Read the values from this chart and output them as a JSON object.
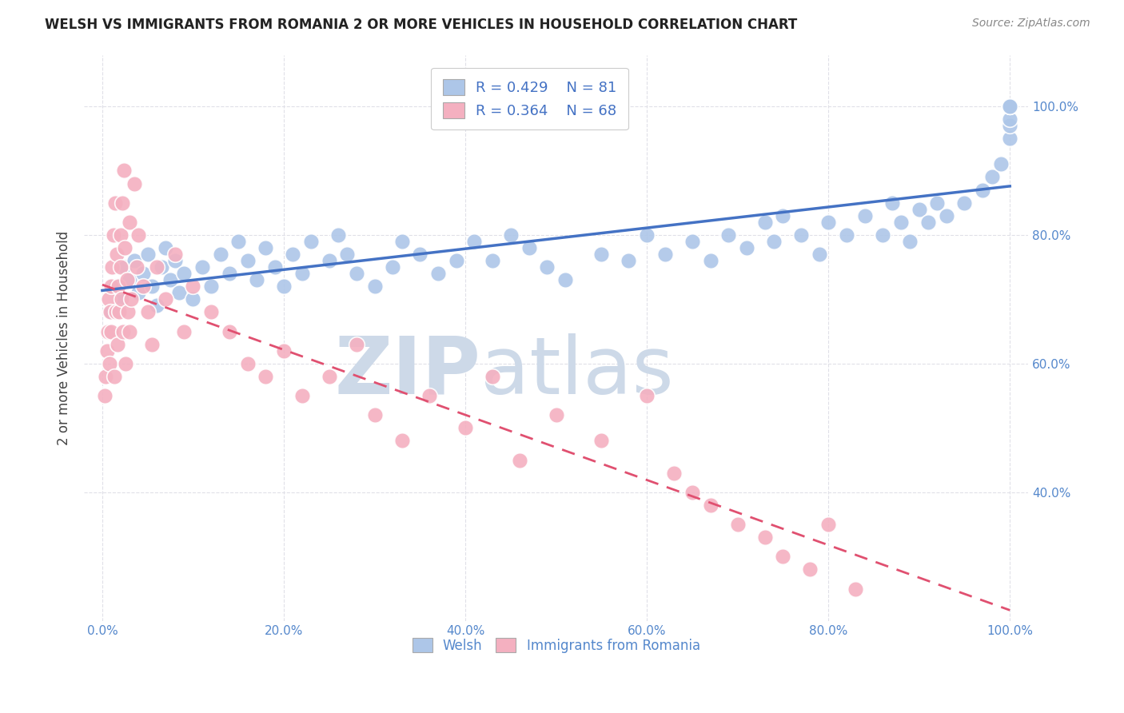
{
  "title": "WELSH VS IMMIGRANTS FROM ROMANIA 2 OR MORE VEHICLES IN HOUSEHOLD CORRELATION CHART",
  "source": "Source: ZipAtlas.com",
  "ylabel": "2 or more Vehicles in Household",
  "welsh_R": 0.429,
  "welsh_N": 81,
  "romania_R": 0.364,
  "romania_N": 68,
  "welsh_color": "#adc6e8",
  "welsh_line_color": "#4472c4",
  "romania_color": "#f4b0c0",
  "romania_line_color": "#e05070",
  "romania_dash_color": "#c0a0b0",
  "background_color": "#ffffff",
  "watermark_color": "#cdd9e8",
  "tick_label_color": "#5588cc",
  "grid_color": "#e0e0e8",
  "xlim": [
    -2,
    102
  ],
  "ylim": [
    20,
    108
  ],
  "x_ticks": [
    0,
    20,
    40,
    60,
    80,
    100
  ],
  "y_ticks": [
    40,
    60,
    80,
    100
  ],
  "welsh_x": [
    1.0,
    1.5,
    2.0,
    2.5,
    3.0,
    3.5,
    4.0,
    4.5,
    5.0,
    5.5,
    6.0,
    6.5,
    7.0,
    7.5,
    8.0,
    8.5,
    9.0,
    10.0,
    11.0,
    12.0,
    13.0,
    14.0,
    15.0,
    16.0,
    17.0,
    18.0,
    19.0,
    20.0,
    21.0,
    22.0,
    23.0,
    25.0,
    26.0,
    27.0,
    28.0,
    30.0,
    32.0,
    33.0,
    35.0,
    37.0,
    39.0,
    41.0,
    43.0,
    45.0,
    47.0,
    49.0,
    51.0,
    55.0,
    58.0,
    60.0,
    62.0,
    65.0,
    67.0,
    69.0,
    71.0,
    73.0,
    74.0,
    75.0,
    77.0,
    79.0,
    80.0,
    82.0,
    84.0,
    86.0,
    87.0,
    88.0,
    89.0,
    90.0,
    91.0,
    92.0,
    93.0,
    95.0,
    97.0,
    98.0,
    99.0,
    100.0,
    100.0,
    100.0,
    100.0,
    100.0,
    100.0
  ],
  "welsh_y": [
    68,
    72,
    70,
    75,
    73,
    76,
    71,
    74,
    77,
    72,
    69,
    75,
    78,
    73,
    76,
    71,
    74,
    70,
    75,
    72,
    77,
    74,
    79,
    76,
    73,
    78,
    75,
    72,
    77,
    74,
    79,
    76,
    80,
    77,
    74,
    72,
    75,
    79,
    77,
    74,
    76,
    79,
    76,
    80,
    78,
    75,
    73,
    77,
    76,
    80,
    77,
    79,
    76,
    80,
    78,
    82,
    79,
    83,
    80,
    77,
    82,
    80,
    83,
    80,
    85,
    82,
    79,
    84,
    82,
    85,
    83,
    85,
    87,
    89,
    91,
    95,
    97,
    98,
    100,
    100,
    100
  ],
  "romania_x": [
    0.3,
    0.4,
    0.5,
    0.6,
    0.7,
    0.8,
    0.9,
    1.0,
    1.0,
    1.1,
    1.2,
    1.3,
    1.4,
    1.5,
    1.6,
    1.7,
    1.8,
    1.9,
    2.0,
    2.0,
    2.1,
    2.2,
    2.3,
    2.4,
    2.5,
    2.6,
    2.7,
    2.8,
    3.0,
    3.0,
    3.2,
    3.5,
    3.8,
    4.0,
    4.5,
    5.0,
    5.5,
    6.0,
    7.0,
    8.0,
    9.0,
    10.0,
    12.0,
    14.0,
    16.0,
    18.0,
    20.0,
    22.0,
    25.0,
    28.0,
    30.0,
    33.0,
    36.0,
    40.0,
    43.0,
    46.0,
    50.0,
    55.0,
    60.0,
    63.0,
    65.0,
    67.0,
    70.0,
    73.0,
    75.0,
    78.0,
    80.0,
    83.0
  ],
  "romania_y": [
    55,
    58,
    62,
    65,
    70,
    60,
    68,
    72,
    65,
    75,
    80,
    58,
    85,
    68,
    77,
    63,
    72,
    68,
    75,
    80,
    70,
    85,
    65,
    90,
    78,
    60,
    73,
    68,
    82,
    65,
    70,
    88,
    75,
    80,
    72,
    68,
    63,
    75,
    70,
    77,
    65,
    72,
    68,
    65,
    60,
    58,
    62,
    55,
    58,
    63,
    52,
    48,
    55,
    50,
    58,
    45,
    52,
    48,
    55,
    43,
    40,
    38,
    35,
    33,
    30,
    28,
    35,
    25
  ]
}
